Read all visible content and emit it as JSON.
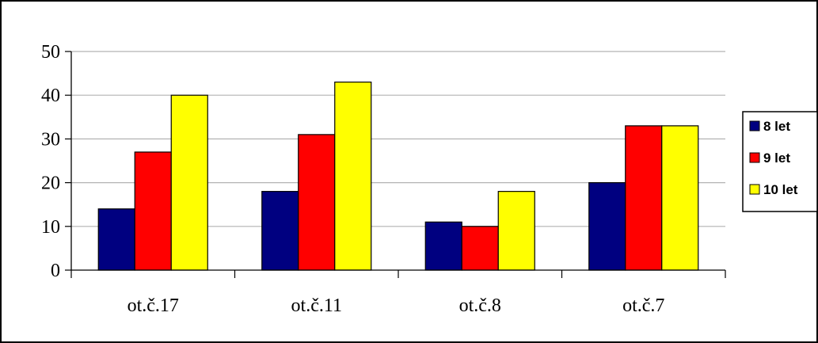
{
  "chart_data": {
    "type": "bar",
    "categories": [
      "ot.č.17",
      "ot.č.11",
      "ot.č.8",
      "ot.č.7"
    ],
    "series": [
      {
        "name": "8 let",
        "values": [
          14,
          18,
          11,
          20
        ],
        "color": "#000080"
      },
      {
        "name": "9 let",
        "values": [
          27,
          31,
          10,
          33
        ],
        "color": "#ff0000"
      },
      {
        "name": "10 let",
        "values": [
          40,
          43,
          18,
          33
        ],
        "color": "#ffff00"
      }
    ],
    "yticks": [
      0,
      10,
      20,
      30,
      40,
      50
    ],
    "ylim": [
      0,
      50
    ],
    "grid": true,
    "legend_position": "right",
    "title": "",
    "xlabel": "",
    "ylabel": ""
  }
}
